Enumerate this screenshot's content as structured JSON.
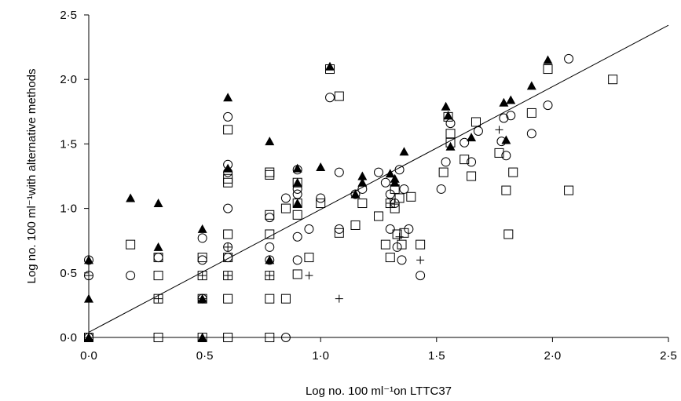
{
  "chart_data": {
    "type": "scatter",
    "xlabel": "Log no. 100 ml⁻¹on LTTC37",
    "ylabel": "Log no. 100 ml⁻¹with alternative methods",
    "xlim": [
      0,
      2.5
    ],
    "ylim": [
      0,
      2.5
    ],
    "x_ticks": [
      "0·0",
      "0·5",
      "1·0",
      "1·5",
      "2·0",
      "2·5"
    ],
    "y_ticks": [
      "0·0",
      "0·5",
      "1·0",
      "1·5",
      "2·0",
      "2·5"
    ],
    "grid": false,
    "reference_line": {
      "x": [
        0,
        2.5
      ],
      "y": [
        0.04,
        2.42
      ]
    },
    "series": [
      {
        "marker": "triangle",
        "points": [
          [
            0.0,
            0.3
          ],
          [
            0.0,
            0.6
          ],
          [
            0.0,
            0.0
          ],
          [
            0.18,
            1.08
          ],
          [
            0.3,
            1.04
          ],
          [
            0.3,
            0.7
          ],
          [
            0.49,
            0.84
          ],
          [
            0.49,
            0.3
          ],
          [
            0.49,
            0.0
          ],
          [
            0.6,
            1.86
          ],
          [
            0.6,
            1.31
          ],
          [
            0.78,
            1.52
          ],
          [
            0.78,
            0.6
          ],
          [
            0.9,
            1.31
          ],
          [
            0.9,
            1.2
          ],
          [
            0.9,
            1.04
          ],
          [
            1.0,
            1.32
          ],
          [
            1.04,
            2.1
          ],
          [
            1.15,
            1.11
          ],
          [
            1.18,
            1.25
          ],
          [
            1.18,
            1.2
          ],
          [
            1.3,
            1.27
          ],
          [
            1.32,
            1.23
          ],
          [
            1.32,
            1.2
          ],
          [
            1.36,
            1.44
          ],
          [
            1.54,
            1.79
          ],
          [
            1.55,
            1.72
          ],
          [
            1.56,
            1.48
          ],
          [
            1.65,
            1.55
          ],
          [
            1.79,
            1.82
          ],
          [
            1.8,
            1.53
          ],
          [
            1.82,
            1.84
          ],
          [
            1.91,
            1.95
          ],
          [
            1.98,
            2.15
          ]
        ]
      },
      {
        "marker": "square",
        "points": [
          [
            0.0,
            0.0
          ],
          [
            0.18,
            0.72
          ],
          [
            0.3,
            0.62
          ],
          [
            0.3,
            0.48
          ],
          [
            0.3,
            0.3
          ],
          [
            0.3,
            0.0
          ],
          [
            0.49,
            0.62
          ],
          [
            0.49,
            0.48
          ],
          [
            0.49,
            0.3
          ],
          [
            0.49,
            0.0
          ],
          [
            0.6,
            1.61
          ],
          [
            0.6,
            1.23
          ],
          [
            0.6,
            1.2
          ],
          [
            0.6,
            0.8
          ],
          [
            0.6,
            0.62
          ],
          [
            0.6,
            0.48
          ],
          [
            0.6,
            0.3
          ],
          [
            0.6,
            0.0
          ],
          [
            0.78,
            1.28
          ],
          [
            0.78,
            1.26
          ],
          [
            0.78,
            0.95
          ],
          [
            0.78,
            0.8
          ],
          [
            0.78,
            0.48
          ],
          [
            0.78,
            0.3
          ],
          [
            0.78,
            0.0
          ],
          [
            0.85,
            1.0
          ],
          [
            0.85,
            0.3
          ],
          [
            0.9,
            1.2
          ],
          [
            0.9,
            1.04
          ],
          [
            0.9,
            0.95
          ],
          [
            0.9,
            0.49
          ],
          [
            0.95,
            0.62
          ],
          [
            1.0,
            1.04
          ],
          [
            1.04,
            2.08
          ],
          [
            1.08,
            1.87
          ],
          [
            1.08,
            0.81
          ],
          [
            1.15,
            0.87
          ],
          [
            1.18,
            1.04
          ],
          [
            1.25,
            0.94
          ],
          [
            1.28,
            0.72
          ],
          [
            1.3,
            1.04
          ],
          [
            1.3,
            0.62
          ],
          [
            1.32,
            1.15
          ],
          [
            1.32,
            1.0
          ],
          [
            1.33,
            0.8
          ],
          [
            1.34,
            1.08
          ],
          [
            1.35,
            0.72
          ],
          [
            1.36,
            0.81
          ],
          [
            1.39,
            1.09
          ],
          [
            1.43,
            0.72
          ],
          [
            1.53,
            1.28
          ],
          [
            1.55,
            1.71
          ],
          [
            1.56,
            1.58
          ],
          [
            1.56,
            1.51
          ],
          [
            1.62,
            1.38
          ],
          [
            1.65,
            1.25
          ],
          [
            1.67,
            1.67
          ],
          [
            1.77,
            1.43
          ],
          [
            1.8,
            1.14
          ],
          [
            1.81,
            0.8
          ],
          [
            1.83,
            1.28
          ],
          [
            1.91,
            1.74
          ],
          [
            1.98,
            2.08
          ],
          [
            2.07,
            1.14
          ],
          [
            2.26,
            2.0
          ]
        ]
      },
      {
        "marker": "circle",
        "points": [
          [
            0.0,
            0.6
          ],
          [
            0.0,
            0.48
          ],
          [
            0.0,
            0.0
          ],
          [
            0.18,
            0.48
          ],
          [
            0.3,
            0.62
          ],
          [
            0.49,
            0.77
          ],
          [
            0.49,
            0.6
          ],
          [
            0.49,
            0.3
          ],
          [
            0.6,
            1.71
          ],
          [
            0.6,
            1.34
          ],
          [
            0.6,
            1.28
          ],
          [
            0.6,
            1.0
          ],
          [
            0.6,
            0.7
          ],
          [
            0.6,
            0.62
          ],
          [
            0.78,
            0.93
          ],
          [
            0.78,
            0.7
          ],
          [
            0.78,
            0.6
          ],
          [
            0.85,
            1.08
          ],
          [
            0.85,
            0.0
          ],
          [
            0.9,
            1.3
          ],
          [
            0.9,
            1.15
          ],
          [
            0.9,
            1.11
          ],
          [
            0.9,
            0.78
          ],
          [
            0.9,
            0.6
          ],
          [
            0.95,
            0.84
          ],
          [
            1.0,
            1.08
          ],
          [
            1.04,
            1.86
          ],
          [
            1.08,
            1.28
          ],
          [
            1.08,
            0.84
          ],
          [
            1.15,
            1.11
          ],
          [
            1.18,
            1.15
          ],
          [
            1.25,
            1.28
          ],
          [
            1.28,
            1.2
          ],
          [
            1.3,
            1.11
          ],
          [
            1.3,
            0.84
          ],
          [
            1.32,
            1.04
          ],
          [
            1.33,
            0.7
          ],
          [
            1.34,
            1.3
          ],
          [
            1.35,
            0.6
          ],
          [
            1.36,
            1.15
          ],
          [
            1.38,
            0.84
          ],
          [
            1.43,
            0.48
          ],
          [
            1.52,
            1.15
          ],
          [
            1.54,
            1.36
          ],
          [
            1.56,
            1.66
          ],
          [
            1.62,
            1.51
          ],
          [
            1.65,
            1.36
          ],
          [
            1.68,
            1.6
          ],
          [
            1.78,
            1.52
          ],
          [
            1.79,
            1.7
          ],
          [
            1.8,
            1.41
          ],
          [
            1.82,
            1.72
          ],
          [
            1.91,
            1.58
          ],
          [
            1.98,
            1.8
          ],
          [
            2.07,
            2.16
          ]
        ]
      },
      {
        "marker": "plus",
        "points": [
          [
            0.0,
            0.48
          ],
          [
            0.3,
            0.3
          ],
          [
            0.49,
            0.48
          ],
          [
            0.49,
            0.3
          ],
          [
            0.6,
            0.7
          ],
          [
            0.6,
            0.48
          ],
          [
            0.78,
            0.48
          ],
          [
            0.95,
            0.48
          ],
          [
            1.08,
            0.3
          ],
          [
            1.3,
            1.04
          ],
          [
            1.34,
            0.78
          ],
          [
            1.43,
            0.6
          ],
          [
            1.77,
            1.61
          ]
        ]
      }
    ]
  }
}
